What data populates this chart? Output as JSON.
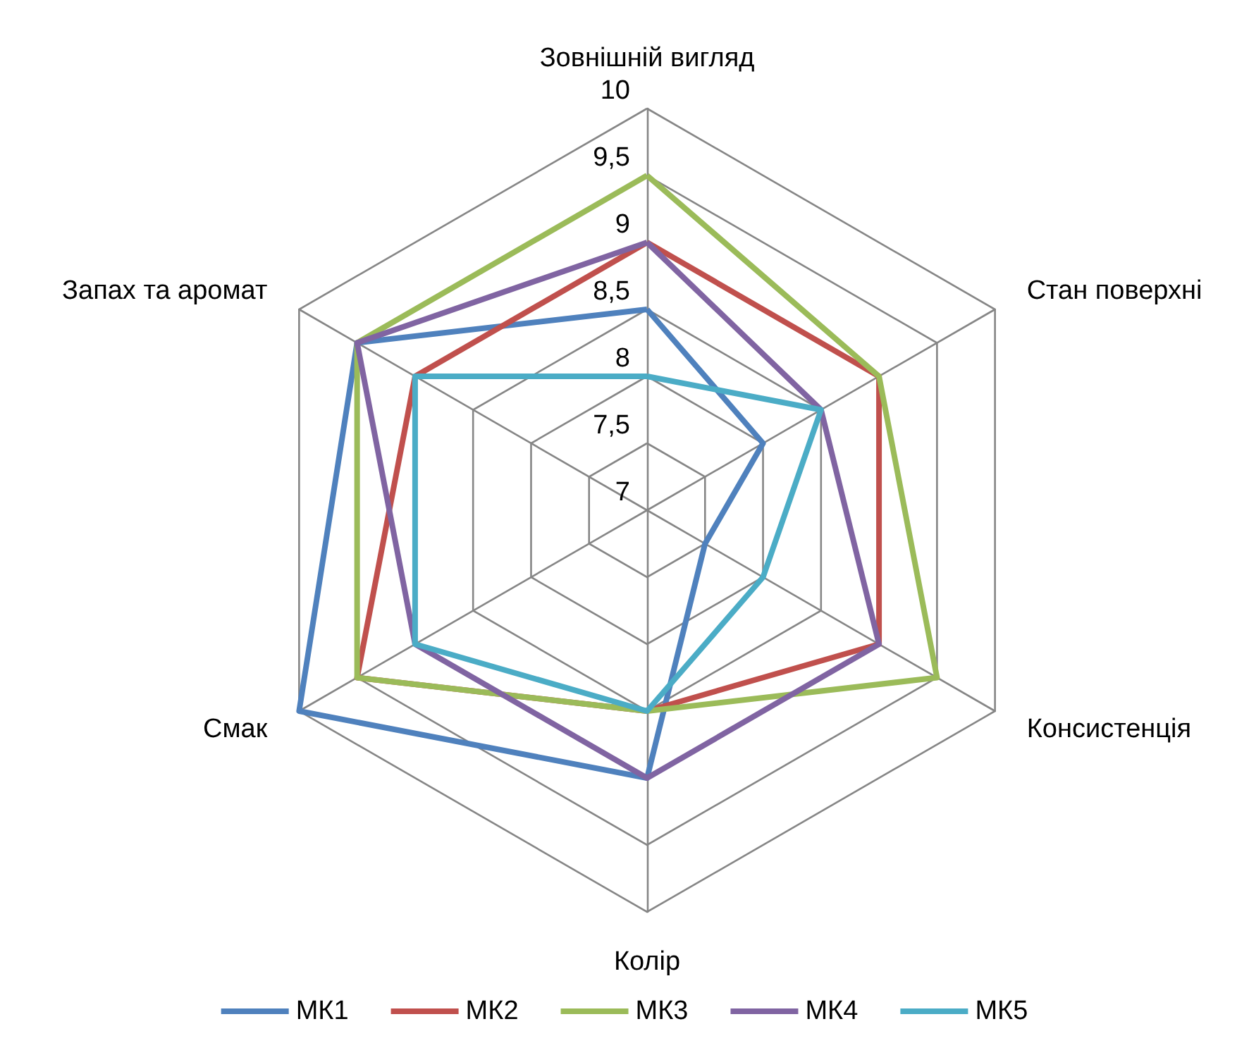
{
  "chart_data": {
    "type": "radar",
    "categories": [
      "Зовнішній вигляд",
      "Стан поверхні",
      "Консистенція",
      "Колір",
      "Смак",
      "Запах та аромат"
    ],
    "ylim": [
      7,
      10
    ],
    "yticks": [
      7,
      {
        "value": 7.5,
        "label": "7,5"
      },
      8,
      {
        "value": 8.5,
        "label": "8,5"
      },
      9,
      {
        "value": 9.5,
        "label": "9,5"
      },
      10
    ],
    "grid": true,
    "legend": "bottom",
    "marker": "none",
    "series": [
      {
        "name": "МК1",
        "color": "#4f81bd",
        "values": [
          8.5,
          8,
          7.5,
          9,
          10,
          9.5
        ]
      },
      {
        "name": "МК2",
        "color": "#c0504d",
        "values": [
          9,
          9,
          9,
          8.5,
          9.5,
          9
        ]
      },
      {
        "name": "МК3",
        "color": "#9bbb59",
        "values": [
          9.5,
          9,
          9.5,
          8.5,
          9.5,
          9.5
        ]
      },
      {
        "name": "МК4",
        "color": "#8064a2",
        "values": [
          9,
          8.5,
          9,
          9,
          9,
          9.5
        ]
      },
      {
        "name": "МК5",
        "color": "#4bacc6",
        "values": [
          8,
          8.5,
          8,
          8.5,
          9,
          9
        ]
      }
    ]
  }
}
